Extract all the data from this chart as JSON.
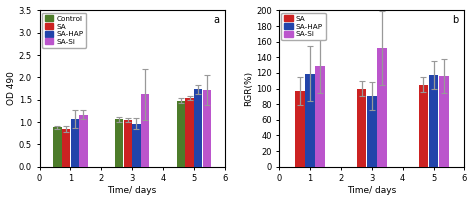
{
  "chart_a": {
    "title": "a",
    "xlabel": "Time/ days",
    "ylabel": "OD 490",
    "xlim": [
      0,
      6
    ],
    "ylim": [
      0.0,
      3.5
    ],
    "yticks": [
      0.0,
      0.5,
      1.0,
      1.5,
      2.0,
      2.5,
      3.0,
      3.5
    ],
    "xticks": [
      0,
      1,
      2,
      3,
      4,
      5,
      6
    ],
    "days": [
      1,
      3,
      5
    ],
    "bar_width": 0.28,
    "series": [
      {
        "label": "Control",
        "color": "#4d7c2a",
        "values": [
          0.88,
          1.06,
          1.48
        ],
        "errors": [
          0.04,
          0.06,
          0.06
        ]
      },
      {
        "label": "SA",
        "color": "#cc2222",
        "values": [
          0.84,
          1.04,
          1.54
        ],
        "errors": [
          0.06,
          0.05,
          0.05
        ]
      },
      {
        "label": "SA-HAP",
        "color": "#2244aa",
        "values": [
          1.06,
          0.96,
          1.73
        ],
        "errors": [
          0.2,
          0.12,
          0.1
        ]
      },
      {
        "label": "SA-Si",
        "color": "#bb55cc",
        "values": [
          1.16,
          1.62,
          1.71
        ],
        "errors": [
          0.1,
          0.57,
          0.34
        ]
      }
    ]
  },
  "chart_b": {
    "title": "b",
    "xlabel": "Time/ days",
    "ylabel": "RGR(%)",
    "xlim": [
      0,
      6
    ],
    "ylim": [
      0,
      200
    ],
    "yticks": [
      0,
      20,
      40,
      60,
      80,
      100,
      120,
      140,
      160,
      180,
      200
    ],
    "xticks": [
      0,
      1,
      2,
      3,
      4,
      5,
      6
    ],
    "days": [
      1,
      3,
      5
    ],
    "bar_width": 0.33,
    "series": [
      {
        "label": "SA",
        "color": "#cc2222",
        "values": [
          97,
          100,
          105
        ],
        "errors": [
          18,
          10,
          10
        ]
      },
      {
        "label": "SA-HAP",
        "color": "#2244aa",
        "values": [
          119,
          91,
          117
        ],
        "errors": [
          35,
          18,
          18
        ]
      },
      {
        "label": "SA-Si",
        "color": "#bb55cc",
        "values": [
          129,
          152,
          116
        ],
        "errors": [
          35,
          47,
          22
        ]
      }
    ]
  },
  "figure_bg": "#ffffff",
  "axes_bg": "#ffffff"
}
